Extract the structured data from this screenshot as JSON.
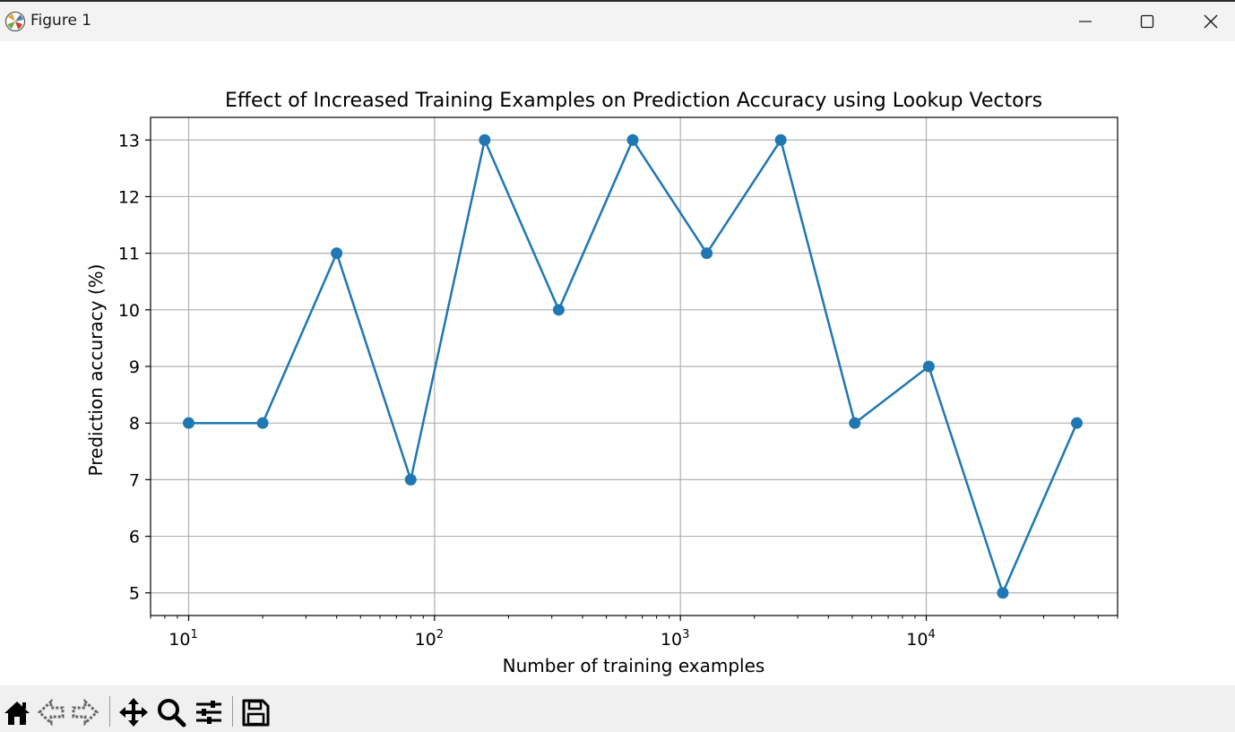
{
  "window": {
    "title": "Figure 1",
    "controls": [
      "minimize-icon",
      "maximize-icon",
      "close-icon"
    ]
  },
  "toolbar": {
    "tools": [
      "home-icon",
      "back-arrow-icon",
      "forward-arrow-icon",
      "pan-move-icon",
      "zoom-magnifier-icon",
      "configure-subplots-icon",
      "save-disk-icon"
    ]
  },
  "chart_data": {
    "type": "line",
    "title": "Effect of Increased Training Examples on Prediction Accuracy using Lookup Vectors",
    "xlabel": "Number of training examples",
    "ylabel": "Prediction accuracy (%)",
    "xscale": "log",
    "xlim": [
      7.0,
      60000
    ],
    "ylim": [
      4.6,
      13.4
    ],
    "grid": true,
    "marker": "circle",
    "color": "#1f77b4",
    "x": [
      10,
      20,
      40,
      80,
      160,
      320,
      640,
      1280,
      2560,
      5120,
      10240,
      20480,
      40960
    ],
    "values": [
      8,
      8,
      11,
      7,
      13,
      10,
      13,
      11,
      13,
      8,
      9,
      5,
      8
    ],
    "xticks": [
      {
        "base": "10",
        "exp": "1",
        "value": 10
      },
      {
        "base": "10",
        "exp": "2",
        "value": 100
      },
      {
        "base": "10",
        "exp": "3",
        "value": 1000
      },
      {
        "base": "10",
        "exp": "4",
        "value": 10000
      }
    ],
    "yticks": [
      "5",
      "6",
      "7",
      "8",
      "9",
      "10",
      "11",
      "12",
      "13"
    ]
  }
}
